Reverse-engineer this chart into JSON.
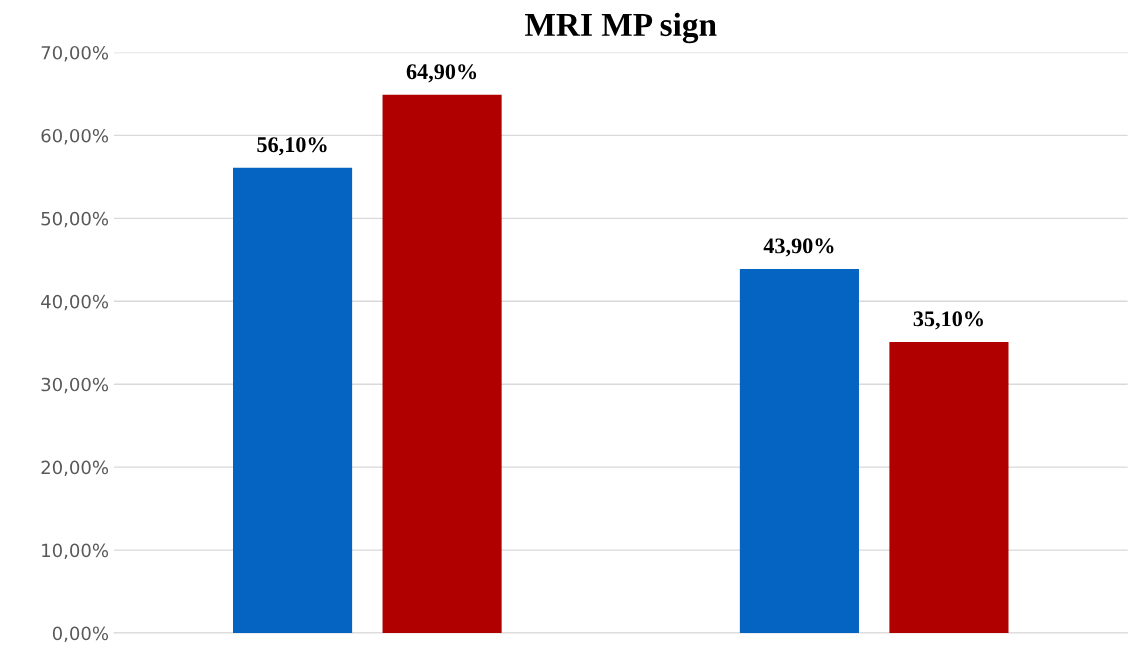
{
  "chart_data": {
    "type": "bar",
    "title": "MRI MP sign",
    "categories": [
      null,
      null
    ],
    "series": [
      {
        "color": "#0563c1",
        "values": [
          56.1,
          43.9
        ],
        "value_labels": [
          "56,10%",
          "43,90%"
        ]
      },
      {
        "color": "#b00000",
        "values": [
          64.9,
          35.1
        ],
        "value_labels": [
          "64,90%",
          "35,10%"
        ]
      }
    ],
    "ylim": [
      0,
      70
    ],
    "yticks": [
      {
        "value": 0,
        "label": "0,00%"
      },
      {
        "value": 10,
        "label": "10,00%"
      },
      {
        "value": 20,
        "label": "20,00%"
      },
      {
        "value": 30,
        "label": "30,00%"
      },
      {
        "value": 40,
        "label": "40,00%"
      },
      {
        "value": 50,
        "label": "50,00%"
      },
      {
        "value": 60,
        "label": "60,00%"
      },
      {
        "value": 70,
        "label": "70,00%"
      }
    ],
    "grid": "y"
  }
}
